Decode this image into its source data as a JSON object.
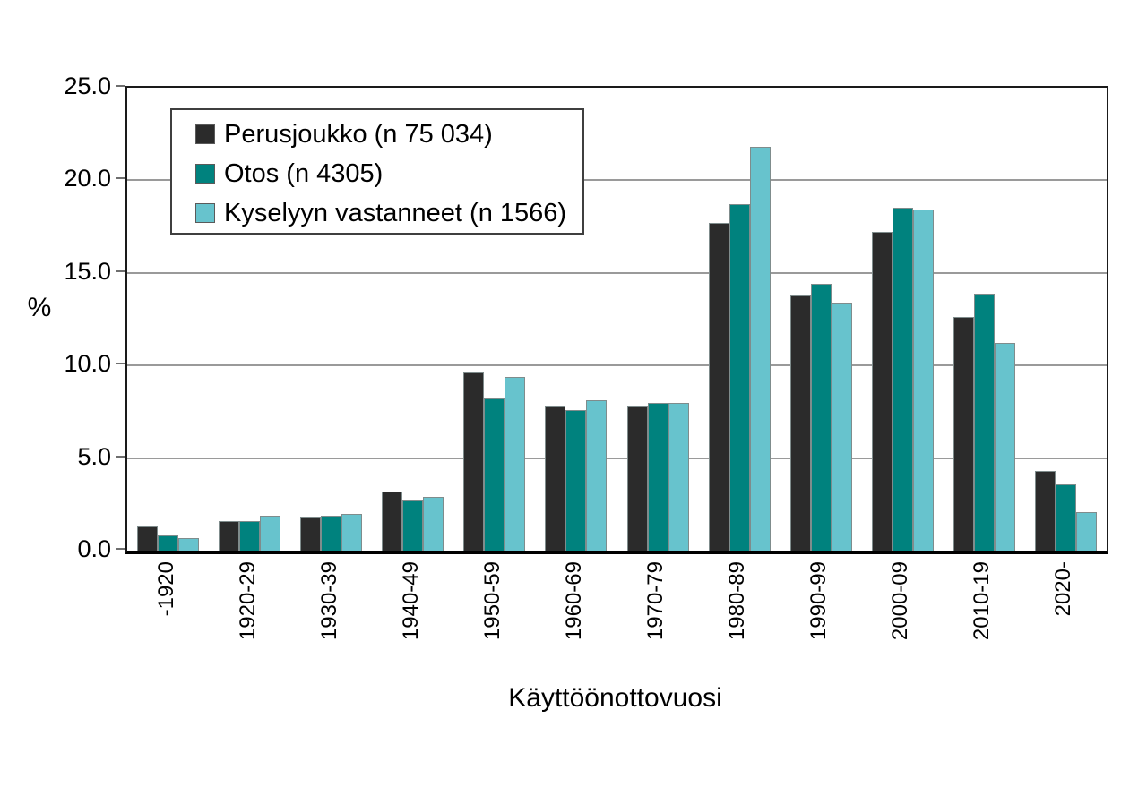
{
  "chart_data": {
    "type": "bar",
    "title": "",
    "xlabel": "Käyttöönottovuosi",
    "ylabel": "%",
    "ylim": [
      0,
      25
    ],
    "ytick_labels": [
      "0.0",
      "5.0",
      "10.0",
      "15.0",
      "20.0",
      "25.0"
    ],
    "grid": "horizontal",
    "legend_position": "top-left-inside-plot",
    "categories": [
      "-1920",
      "1920-29",
      "1930-39",
      "1940-49",
      "1950-59",
      "1960-69",
      "1970-79",
      "1980-89",
      "1990-99",
      "2000-09",
      "2010-19",
      "2020-"
    ],
    "series": [
      {
        "name": "Perusjoukko (n 75 034)",
        "color": "#2B2B2B",
        "values": [
          1.3,
          1.6,
          1.8,
          3.2,
          9.6,
          7.8,
          7.8,
          17.7,
          13.8,
          17.2,
          12.6,
          4.3
        ]
      },
      {
        "name": "Otos (n 4305)",
        "color": "#00827E",
        "values": [
          0.8,
          1.6,
          1.9,
          2.7,
          8.2,
          7.6,
          8.0,
          18.7,
          14.4,
          18.5,
          13.9,
          3.6
        ]
      },
      {
        "name": "Kyselyyn vastanneet (n 1566)",
        "color": "#67C3CD",
        "values": [
          0.7,
          1.9,
          2.0,
          2.9,
          9.4,
          8.1,
          8.0,
          21.8,
          13.4,
          18.4,
          11.2,
          2.1
        ]
      }
    ]
  },
  "colors": {
    "background": "#FFFFFF",
    "gridline": "#9A9A9A",
    "axis": "#000000",
    "bar_border": "#7F8C8C",
    "legend_border": "#3F3F3F",
    "text": "#000000"
  }
}
